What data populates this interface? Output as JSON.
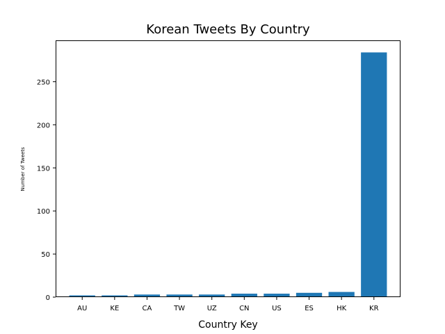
{
  "chart_data": {
    "type": "bar",
    "title": "Korean Tweets By Country",
    "xlabel": "Country Key",
    "ylabel": "Number of Tweets",
    "categories": [
      "AU",
      "KE",
      "CA",
      "TW",
      "UZ",
      "CN",
      "US",
      "ES",
      "HK",
      "KR"
    ],
    "values": [
      2,
      2,
      3,
      3,
      3,
      4,
      4,
      5,
      6,
      284
    ],
    "ylim": [
      0,
      298
    ],
    "yticks": [
      0,
      50,
      100,
      150,
      200,
      250
    ],
    "grid": false,
    "legend": "none",
    "color": "#1f77b4"
  }
}
